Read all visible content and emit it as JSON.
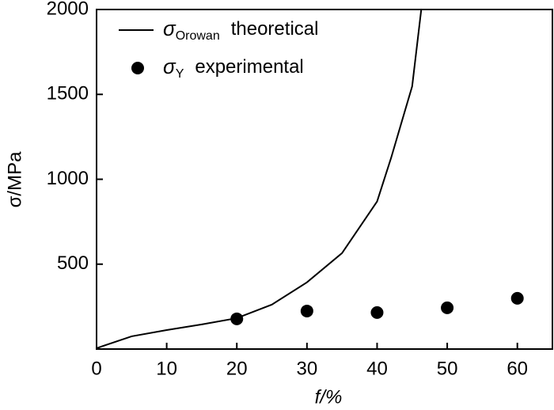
{
  "chart_data": {
    "type": "line",
    "xlabel": "f/%",
    "ylabel": "σ/MPa",
    "xlim": [
      0,
      65
    ],
    "ylim": [
      0,
      2000
    ],
    "xticks": [
      0,
      10,
      20,
      30,
      40,
      50,
      60
    ],
    "yticks": [
      500,
      1000,
      1500,
      2000
    ],
    "series": [
      {
        "name": {
          "symbol": "σ",
          "subscript": "Orowan",
          "text": "theoretical"
        },
        "color": "#000000",
        "mark": "line",
        "x": [
          0,
          5,
          10,
          15,
          20,
          25,
          30,
          35,
          40,
          42,
          44,
          45,
          46.3
        ],
        "values": [
          5,
          75,
          112,
          145,
          182,
          262,
          393,
          565,
          869,
          1126,
          1407,
          1547,
          2000
        ]
      },
      {
        "name": {
          "symbol": "σ",
          "subscript": "Y",
          "text": "experimental"
        },
        "color": "#000000",
        "mark": "scatter",
        "x": [
          20,
          30,
          40,
          50,
          60
        ],
        "values": [
          178,
          224,
          215,
          243,
          299
        ]
      }
    ]
  }
}
